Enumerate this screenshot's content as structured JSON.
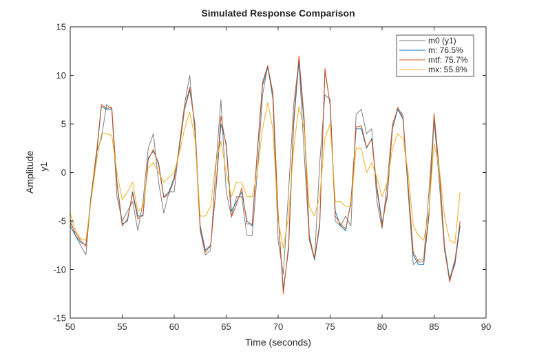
{
  "chart_data": {
    "type": "line",
    "title": "Simulated Response Comparison",
    "xlabel": "Time (seconds)",
    "ylabel": "Amplitude",
    "channel_label": "y1",
    "xlim": [
      50,
      90
    ],
    "ylim": [
      -15,
      15
    ],
    "xticks": [
      "50",
      "55",
      "60",
      "65",
      "70",
      "75",
      "80",
      "85",
      "90"
    ],
    "yticks": [
      "15",
      "10",
      "5",
      "0",
      "-5",
      "-10",
      "-15"
    ],
    "grid": false,
    "legend_position": "top-right",
    "x": [
      50.0,
      50.5,
      51.0,
      51.5,
      52.0,
      52.5,
      53.0,
      53.5,
      54.0,
      54.5,
      55.0,
      55.5,
      56.0,
      56.5,
      57.0,
      57.5,
      58.0,
      58.5,
      59.0,
      59.5,
      60.0,
      60.5,
      61.0,
      61.5,
      62.0,
      62.5,
      63.0,
      63.5,
      64.0,
      64.5,
      65.0,
      65.5,
      66.0,
      66.5,
      67.0,
      67.5,
      68.0,
      68.5,
      69.0,
      69.5,
      70.0,
      70.5,
      71.0,
      71.5,
      72.0,
      72.5,
      73.0,
      73.5,
      74.0,
      74.5,
      75.0,
      75.5,
      76.0,
      76.5,
      77.0,
      77.5,
      78.0,
      78.5,
      79.0,
      79.5,
      80.0,
      80.5,
      81.0,
      81.5,
      82.0,
      82.5,
      83.0,
      83.5,
      84.0,
      84.5,
      85.0,
      85.5,
      86.0,
      86.5,
      87.0,
      87.5
    ],
    "series": [
      {
        "name": "m0 (y1)",
        "color": "#7f7f7f",
        "values": [
          -4.8,
          -6.5,
          -7.5,
          -8.5,
          -2.5,
          2.0,
          3.5,
          7.0,
          6.5,
          -2.5,
          -5.0,
          -4.0,
          -3.0,
          -6.0,
          -3.0,
          2.5,
          4.0,
          -1.0,
          -4.2,
          -2.0,
          -2.0,
          3.0,
          7.0,
          10.0,
          4.0,
          -6.0,
          -8.5,
          -8.0,
          0.5,
          7.5,
          -2.0,
          -4.5,
          -2.5,
          -2.5,
          -6.5,
          -6.5,
          0.0,
          8.0,
          11.0,
          7.5,
          -7.0,
          -10.5,
          -2.0,
          7.0,
          11.5,
          2.0,
          -7.0,
          -9.0,
          1.0,
          8.0,
          7.5,
          -5.0,
          -5.5,
          -4.5,
          -5.5,
          6.0,
          6.5,
          4.0,
          4.5,
          -3.0,
          -5.8,
          -1.0,
          5.0,
          6.5,
          6.0,
          -2.0,
          -9.5,
          -9.0,
          -9.0,
          -2.0,
          5.5,
          -1.0,
          -8.0,
          -11.0,
          -9.0,
          -5.5
        ]
      },
      {
        "name": "m: 76.5%",
        "color": "#0072bd",
        "values": [
          -5.5,
          -6.5,
          -7.2,
          -7.5,
          -2.5,
          1.5,
          6.8,
          6.5,
          6.5,
          -1.0,
          -5.3,
          -5.0,
          -2.0,
          -4.5,
          -4.5,
          1.5,
          2.2,
          1.0,
          -2.5,
          -2.0,
          -0.5,
          2.5,
          6.5,
          8.5,
          5.0,
          -5.5,
          -8.0,
          -7.5,
          -2.0,
          5.0,
          3.0,
          -4.0,
          -3.0,
          -2.0,
          -5.0,
          -5.5,
          2.0,
          9.0,
          10.8,
          8.0,
          -4.5,
          -12.0,
          -8.0,
          5.0,
          11.5,
          5.0,
          -6.5,
          -9.0,
          -5.5,
          10.5,
          7.0,
          -4.0,
          -5.5,
          -6.0,
          -3.0,
          4.5,
          4.5,
          2.5,
          3.5,
          -1.5,
          -5.2,
          -2.5,
          4.5,
          6.5,
          5.5,
          -1.5,
          -8.5,
          -9.5,
          -9.5,
          -4.5,
          5.5,
          0.5,
          -7.5,
          -11.0,
          -9.5,
          -5.5
        ]
      },
      {
        "name": "mtf: 75.7%",
        "color": "#d95319",
        "values": [
          -5.2,
          -6.2,
          -7.0,
          -7.6,
          -2.8,
          1.8,
          7.0,
          6.6,
          6.7,
          -1.2,
          -5.5,
          -4.8,
          -2.2,
          -4.8,
          -4.3,
          1.3,
          2.4,
          0.8,
          -2.6,
          -2.2,
          -0.8,
          2.7,
          6.6,
          8.8,
          4.7,
          -5.8,
          -8.2,
          -7.6,
          -1.8,
          5.8,
          2.7,
          -4.6,
          -3.3,
          -1.6,
          -5.3,
          -5.3,
          2.3,
          9.3,
          11.0,
          8.2,
          -4.2,
          -12.5,
          -7.5,
          5.5,
          12.0,
          5.6,
          -6.8,
          -8.8,
          -5.2,
          10.7,
          6.9,
          -4.5,
          -5.3,
          -5.8,
          -3.2,
          4.7,
          4.8,
          2.6,
          3.4,
          -1.8,
          -5.5,
          -2.2,
          4.6,
          6.7,
          5.7,
          -1.2,
          -8.2,
          -9.2,
          -9.2,
          -4.2,
          6.1,
          0.3,
          -7.8,
          -11.3,
          -9.2,
          -5.0
        ]
      },
      {
        "name": "mx: 55.8%",
        "color": "#edb120",
        "values": [
          -4.2,
          -6.0,
          -6.8,
          -7.0,
          -3.0,
          1.0,
          4.0,
          4.0,
          3.8,
          0.0,
          -2.8,
          -2.0,
          -1.0,
          -4.0,
          -3.5,
          0.5,
          1.0,
          0.0,
          -1.0,
          -0.5,
          0.0,
          2.0,
          4.5,
          6.2,
          3.5,
          -4.5,
          -4.5,
          -3.5,
          1.0,
          3.2,
          0.0,
          -2.5,
          -1.0,
          -1.0,
          -2.5,
          -2.5,
          0.0,
          4.5,
          7.2,
          4.5,
          -5.0,
          -7.8,
          -4.5,
          2.5,
          6.8,
          4.5,
          -3.5,
          -4.5,
          -2.5,
          3.5,
          5.0,
          -3.0,
          -3.0,
          -3.5,
          -3.5,
          2.5,
          2.5,
          0.0,
          1.0,
          -0.5,
          -2.5,
          -1.0,
          2.5,
          4.0,
          3.5,
          0.0,
          -5.5,
          -6.5,
          -7.0,
          -4.0,
          3.0,
          0.5,
          -4.5,
          -7.0,
          -7.3,
          -2.0
        ]
      }
    ]
  }
}
